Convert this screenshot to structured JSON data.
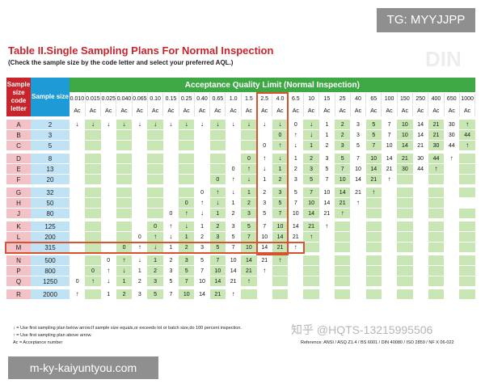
{
  "overlays": {
    "tg_label": "TG: MYYJJPP",
    "bottom_label": "m-ky-kaiyuntyou.com",
    "zhihu_mark": "知乎 @HQTS-13215995506",
    "din_mark": "DIN"
  },
  "document": {
    "title": "Table II.Single Sampling Plans For Normal Inspection",
    "subtitle": "(Check the sample size by the code letter and select your preferred AQL.)",
    "header": {
      "letter_col": "Sample size code letter",
      "size_col": "Sample size",
      "aql_group": "Acceptance Quality Limit (Normal Inspection)",
      "sub_label": "Ac"
    },
    "aql_values": [
      "0.010",
      "0.015",
      "0.025",
      "0.040",
      "0.065",
      "0.10",
      "0.15",
      "0.25",
      "0.40",
      "0.65",
      "1.0",
      "1.5",
      "2.5",
      "4.0",
      "6.5",
      "10",
      "15",
      "25",
      "40",
      "65",
      "100",
      "150",
      "250",
      "400",
      "650",
      "1000"
    ],
    "groups": [
      [
        {
          "letter": "A",
          "size": "2",
          "cells": [
            "↓",
            "↓",
            "↓",
            "↓",
            "↓",
            "↓",
            "↓",
            "↓",
            "↓",
            "↓",
            "↓",
            "↓",
            "↓",
            "↓",
            "0",
            "↓",
            "1",
            "2",
            "3",
            "5",
            "7",
            "10",
            "14",
            "21",
            "30",
            "↑"
          ]
        },
        {
          "letter": "B",
          "size": "3",
          "cells": [
            "",
            "",
            "",
            "",
            "",
            "",
            "",
            "",
            "",
            "",
            "",
            "",
            "",
            "0",
            "↑",
            "↓",
            "1",
            "2",
            "3",
            "5",
            "7",
            "10",
            "14",
            "21",
            "30",
            "44"
          ]
        },
        {
          "letter": "C",
          "size": "5",
          "cells": [
            "",
            "",
            "",
            "",
            "",
            "",
            "",
            "",
            "",
            "",
            "",
            "",
            "0",
            "↑",
            "↓",
            "1",
            "2",
            "3",
            "5",
            "7",
            "10",
            "14",
            "21",
            "30",
            "44",
            "↑"
          ]
        }
      ],
      [
        {
          "letter": "D",
          "size": "8",
          "cells": [
            "",
            "",
            "",
            "",
            "",
            "",
            "",
            "",
            "",
            "",
            "",
            "0",
            "↑",
            "↓",
            "1",
            "2",
            "3",
            "5",
            "7",
            "10",
            "14",
            "21",
            "30",
            "44",
            "↑",
            ""
          ]
        },
        {
          "letter": "E",
          "size": "13",
          "cells": [
            "",
            "",
            "",
            "",
            "",
            "",
            "",
            "",
            "",
            "",
            "0",
            "↑",
            "↓",
            "1",
            "2",
            "3",
            "5",
            "7",
            "10",
            "14",
            "21",
            "30",
            "44",
            "↑",
            "",
            ""
          ]
        },
        {
          "letter": "F",
          "size": "20",
          "cells": [
            "",
            "",
            "",
            "",
            "",
            "",
            "",
            "",
            "",
            "0",
            "↑",
            "↓",
            "1",
            "2",
            "3",
            "5",
            "7",
            "10",
            "14",
            "21",
            "↑",
            "",
            "",
            "",
            "",
            ""
          ]
        }
      ],
      [
        {
          "letter": "G",
          "size": "32",
          "cells": [
            "",
            "",
            "",
            "",
            "",
            "",
            "",
            "",
            "0",
            "↑",
            "↓",
            "1",
            "2",
            "3",
            "5",
            "7",
            "10",
            "14",
            "21",
            "↑",
            "",
            "",
            "",
            "",
            "",
            ""
          ]
        },
        {
          "letter": "H",
          "size": "50",
          "cells": [
            "",
            "",
            "",
            "",
            "",
            "",
            "",
            "0",
            "↑",
            "↓",
            "1",
            "2",
            "3",
            "5",
            "7",
            "10",
            "14",
            "21",
            "↑",
            "",
            "",
            "",
            "",
            "",
            ""
          ]
        },
        {
          "letter": "J",
          "size": "80",
          "cells": [
            "",
            "",
            "",
            "",
            "",
            "",
            "0",
            "↑",
            "↓",
            "1",
            "2",
            "3",
            "5",
            "7",
            "10",
            "14",
            "21",
            "↑",
            "",
            "",
            "",
            "",
            "",
            "",
            "",
            ""
          ]
        }
      ],
      [
        {
          "letter": "K",
          "size": "125",
          "cells": [
            "",
            "",
            "",
            "",
            "",
            "0",
            "↑",
            "↓",
            "1",
            "2",
            "3",
            "5",
            "7",
            "10",
            "14",
            "21",
            "↑",
            "",
            "",
            "",
            "",
            "",
            "",
            "",
            "",
            ""
          ]
        },
        {
          "letter": "L",
          "size": "200",
          "cells": [
            "",
            "",
            "",
            "",
            "0",
            "↑",
            "↓",
            "1",
            "2",
            "3",
            "5",
            "7",
            "10",
            "14",
            "21",
            "↑",
            "",
            "",
            "",
            "",
            "",
            "",
            "",
            "",
            "",
            ""
          ]
        },
        {
          "letter": "M",
          "size": "315",
          "cells": [
            "",
            "",
            "",
            "0",
            "↑",
            "↓",
            "1",
            "2",
            "3",
            "5",
            "7",
            "10",
            "14",
            "21",
            "↑",
            "",
            "",
            "",
            "",
            "",
            "",
            "",
            "",
            "",
            "",
            ""
          ]
        }
      ],
      [
        {
          "letter": "N",
          "size": "500",
          "cells": [
            "",
            "",
            "0",
            "↑",
            "↓",
            "1",
            "2",
            "3",
            "5",
            "7",
            "10",
            "14",
            "21",
            "↑",
            "",
            "",
            "",
            "",
            "",
            "",
            "",
            "",
            "",
            "",
            "",
            ""
          ]
        },
        {
          "letter": "P",
          "size": "800",
          "cells": [
            "",
            "0",
            "↑",
            "↓",
            "1",
            "2",
            "3",
            "5",
            "7",
            "10",
            "14",
            "21",
            "↑",
            "",
            "",
            "",
            "",
            "",
            "",
            "",
            "",
            "",
            "",
            "",
            "",
            ""
          ]
        },
        {
          "letter": "Q",
          "size": "1250",
          "cells": [
            "0",
            "↑",
            "↓",
            "1",
            "2",
            "3",
            "5",
            "7",
            "10",
            "14",
            "21",
            "↑",
            "",
            "",
            "",
            "",
            "",
            "",
            "",
            "",
            "",
            "",
            "",
            "",
            "",
            ""
          ]
        }
      ],
      [
        {
          "letter": "R",
          "size": "2000",
          "cells": [
            "↑",
            "",
            "1",
            "2",
            "3",
            "5",
            "7",
            "10",
            "14",
            "21",
            "↑",
            "",
            "",
            "",
            "",
            "",
            "",
            "",
            "",
            "",
            "",
            "",
            "",
            "",
            "",
            ""
          ]
        }
      ]
    ],
    "footnotes": [
      "↓ = Use first sampling plan below arrow.If sample size equals,or exceeds lot or batch size,do 100 percent inspection.",
      "↑ = Use first sampling plan above arrow.",
      "Ac = Acceptance number"
    ],
    "reference": "Reference: ANSI / ASQ Z1.4 / BS 6001 / DIN 40080 / ISO 2859 / NF X 06-022"
  }
}
